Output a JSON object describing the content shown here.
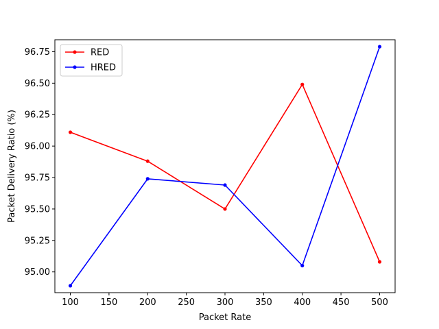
{
  "chart_data": {
    "type": "line",
    "title": "",
    "xlabel": "Packet Rate",
    "ylabel": "Packet Delivery Ratio (%)",
    "x": [
      100,
      200,
      300,
      400,
      500
    ],
    "xlim": [
      80,
      520
    ],
    "ylim": [
      94.835,
      96.845
    ],
    "xticks": [
      100,
      150,
      200,
      250,
      300,
      350,
      400,
      450,
      500
    ],
    "yticks": [
      95.0,
      95.25,
      95.5,
      95.75,
      96.0,
      96.25,
      96.5,
      96.75
    ],
    "ytick_labels": [
      "95.00",
      "95.25",
      "95.50",
      "95.75",
      "96.00",
      "96.25",
      "96.50",
      "96.75"
    ],
    "grid": false,
    "legend_position": "top-left",
    "series": [
      {
        "name": "RED",
        "color": "#ff0000",
        "marker": "circle",
        "values": [
          96.11,
          95.88,
          95.5,
          96.49,
          95.08
        ]
      },
      {
        "name": "HRED",
        "color": "#0000ff",
        "marker": "circle",
        "values": [
          94.89,
          95.74,
          95.69,
          95.05,
          96.79
        ]
      }
    ]
  }
}
